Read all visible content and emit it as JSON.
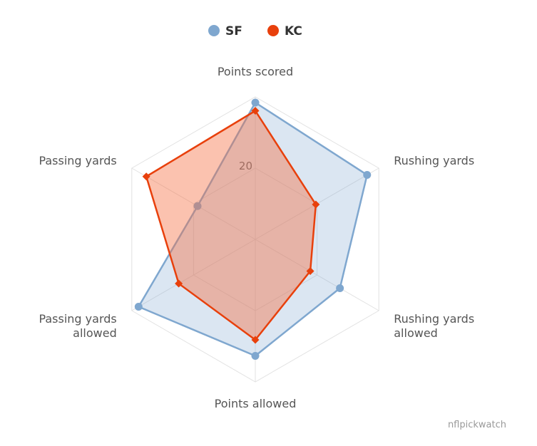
{
  "chart_data": {
    "type": "radar",
    "axes": [
      [
        "Points scored"
      ],
      [
        "Rushing yards"
      ],
      [
        "Rushing yards",
        "allowed"
      ],
      [
        "Points allowed"
      ],
      [
        "Passing yards",
        "allowed"
      ],
      [
        "Passing yards"
      ]
    ],
    "rmax": 40,
    "ticks": [
      20
    ],
    "series": [
      {
        "name": "SF",
        "color": "#7fa7cf",
        "fill": "rgba(127,167,207,0.28)",
        "marker": "circle",
        "values": [
          38.4,
          36.2,
          27.4,
          32.7,
          37.8,
          18.7
        ]
      },
      {
        "name": "KC",
        "color": "#e8400c",
        "fill": "rgba(245,110,65,0.42)",
        "marker": "diamond",
        "values": [
          36.1,
          19.6,
          17.8,
          28.2,
          24.8,
          35.3
        ]
      }
    ],
    "legend_position": "top-center",
    "grid": true,
    "credit": "nflpickwatch"
  }
}
